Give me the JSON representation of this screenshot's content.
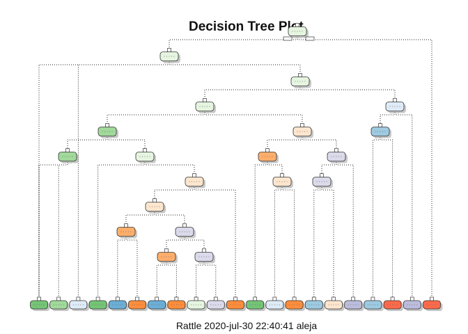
{
  "title": "Decision Tree Plot.",
  "caption": "Rattle 2020-jul-30 22:40:41 aleja",
  "palette": {
    "green": "#a1d99b",
    "green_light": "#e5f5e0",
    "blue": "#9ecae1",
    "blue_light": "#deebf7",
    "orange": "#fdae6b",
    "orange_light": "#fee6ce",
    "purple_light": "#dadaeb",
    "red": "#fb6a4a",
    "leaf_green": "#74c476",
    "leaf_green_light": "#a1d99b",
    "leaf_blue": "#6baed6",
    "leaf_orange": "#fd8d3c",
    "leaf_purple": "#bcbddc",
    "line": "#222222"
  },
  "tree": {
    "nodes": [
      {
        "id": "n1",
        "fill": "green_light"
      },
      {
        "id": "n2",
        "fill": "green_light"
      },
      {
        "id": "n3",
        "fill": "green_light"
      },
      {
        "id": "n4",
        "fill": "green_light"
      },
      {
        "id": "n5",
        "fill": "blue_light"
      },
      {
        "id": "n6",
        "fill": "green"
      },
      {
        "id": "n7",
        "fill": "orange_light"
      },
      {
        "id": "n8",
        "fill": "blue"
      },
      {
        "id": "n9",
        "fill": "green"
      },
      {
        "id": "n10",
        "fill": "green_light"
      },
      {
        "id": "n11",
        "fill": "orange"
      },
      {
        "id": "n12",
        "fill": "purple_light"
      },
      {
        "id": "n13",
        "fill": "orange_light"
      },
      {
        "id": "n14",
        "fill": "orange_light"
      },
      {
        "id": "n15",
        "fill": "orange_light"
      },
      {
        "id": "n16",
        "fill": "purple_light"
      },
      {
        "id": "n17",
        "fill": "orange"
      },
      {
        "id": "n18",
        "fill": "purple_light"
      },
      {
        "id": "n19",
        "fill": "orange"
      },
      {
        "id": "n20",
        "fill": "purple_light"
      }
    ],
    "leaves": [
      {
        "id": "l1",
        "fill": "leaf_green"
      },
      {
        "id": "l2",
        "fill": "leaf_green_light"
      },
      {
        "id": "l3",
        "fill": "blue_light"
      },
      {
        "id": "l4",
        "fill": "leaf_green"
      },
      {
        "id": "l5",
        "fill": "leaf_blue"
      },
      {
        "id": "l6",
        "fill": "leaf_orange"
      },
      {
        "id": "l7",
        "fill": "leaf_blue"
      },
      {
        "id": "l8",
        "fill": "leaf_orange"
      },
      {
        "id": "l9",
        "fill": "green_light"
      },
      {
        "id": "l10",
        "fill": "purple_light"
      },
      {
        "id": "l11",
        "fill": "leaf_orange"
      },
      {
        "id": "l12",
        "fill": "leaf_green"
      },
      {
        "id": "l13",
        "fill": "blue_light"
      },
      {
        "id": "l14",
        "fill": "leaf_orange"
      },
      {
        "id": "l15",
        "fill": "blue"
      },
      {
        "id": "l16",
        "fill": "orange_light"
      },
      {
        "id": "l17",
        "fill": "leaf_purple"
      },
      {
        "id": "l18",
        "fill": "blue"
      },
      {
        "id": "l19",
        "fill": "red"
      },
      {
        "id": "l20",
        "fill": "leaf_purple"
      },
      {
        "id": "l21",
        "fill": "red"
      }
    ],
    "edges": [
      [
        "n1",
        "n2"
      ],
      [
        "n1",
        "l21"
      ],
      [
        "n2",
        "l1"
      ],
      [
        "n2",
        "n3"
      ],
      [
        "n3",
        "n4"
      ],
      [
        "n3",
        "n5"
      ],
      [
        "n4",
        "n6"
      ],
      [
        "n4",
        "n7"
      ],
      [
        "n6",
        "n9"
      ],
      [
        "n6",
        "n10"
      ],
      [
        "n9",
        "l1"
      ],
      [
        "n9",
        "l2"
      ],
      [
        "n10",
        "l4"
      ],
      [
        "n10",
        "n13"
      ],
      [
        "n13",
        "n15"
      ],
      [
        "n13",
        "l11"
      ],
      [
        "n15",
        "n17"
      ],
      [
        "n15",
        "n18"
      ],
      [
        "n17",
        "l5"
      ],
      [
        "n17",
        "l6"
      ],
      [
        "n18",
        "n19"
      ],
      [
        "n18",
        "n20"
      ],
      [
        "n19",
        "l7"
      ],
      [
        "n19",
        "l8"
      ],
      [
        "n20",
        "l9"
      ],
      [
        "n20",
        "l10"
      ],
      [
        "n7",
        "n11"
      ],
      [
        "n7",
        "n12"
      ],
      [
        "n11",
        "l12"
      ],
      [
        "n11",
        "n14"
      ],
      [
        "n14",
        "l13"
      ],
      [
        "n14",
        "l14"
      ],
      [
        "n12",
        "n16"
      ],
      [
        "n12",
        "l17"
      ],
      [
        "n16",
        "l15"
      ],
      [
        "n16",
        "l16"
      ],
      [
        "n5",
        "n8"
      ],
      [
        "n5",
        "l20"
      ],
      [
        "n8",
        "l18"
      ],
      [
        "n8",
        "l19"
      ],
      [
        "n2",
        "l3"
      ]
    ]
  }
}
